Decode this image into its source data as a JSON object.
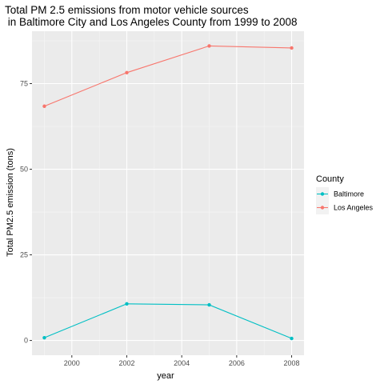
{
  "chart_data": {
    "type": "line",
    "title_line1": "Total PM 2.5 emissions from motor vehicle sources",
    "title_line2": " in Baltimore City and Los Angeles County from 1999 to 2008",
    "xlabel": "year",
    "ylabel": "Total PM2.5 emission (tons)",
    "xlim": [
      1998.55,
      2008.45
    ],
    "ylim": [
      -4.3,
      90.3
    ],
    "x_ticks": [
      2000,
      2002,
      2004,
      2006,
      2008
    ],
    "y_ticks": [
      0,
      25,
      50,
      75
    ],
    "grid": true,
    "panel_background": "#ebebeb",
    "legend": {
      "title": "County",
      "position": "right"
    },
    "x": [
      1999,
      2002,
      2005,
      2008
    ],
    "series": [
      {
        "name": "Baltimore",
        "color": "#00bfc4",
        "values": [
          0.8,
          10.7,
          10.4,
          0.6
        ]
      },
      {
        "name": "Los Angeles",
        "color": "#f8766d",
        "values": [
          68.4,
          78.2,
          86.0,
          85.4
        ]
      }
    ]
  }
}
